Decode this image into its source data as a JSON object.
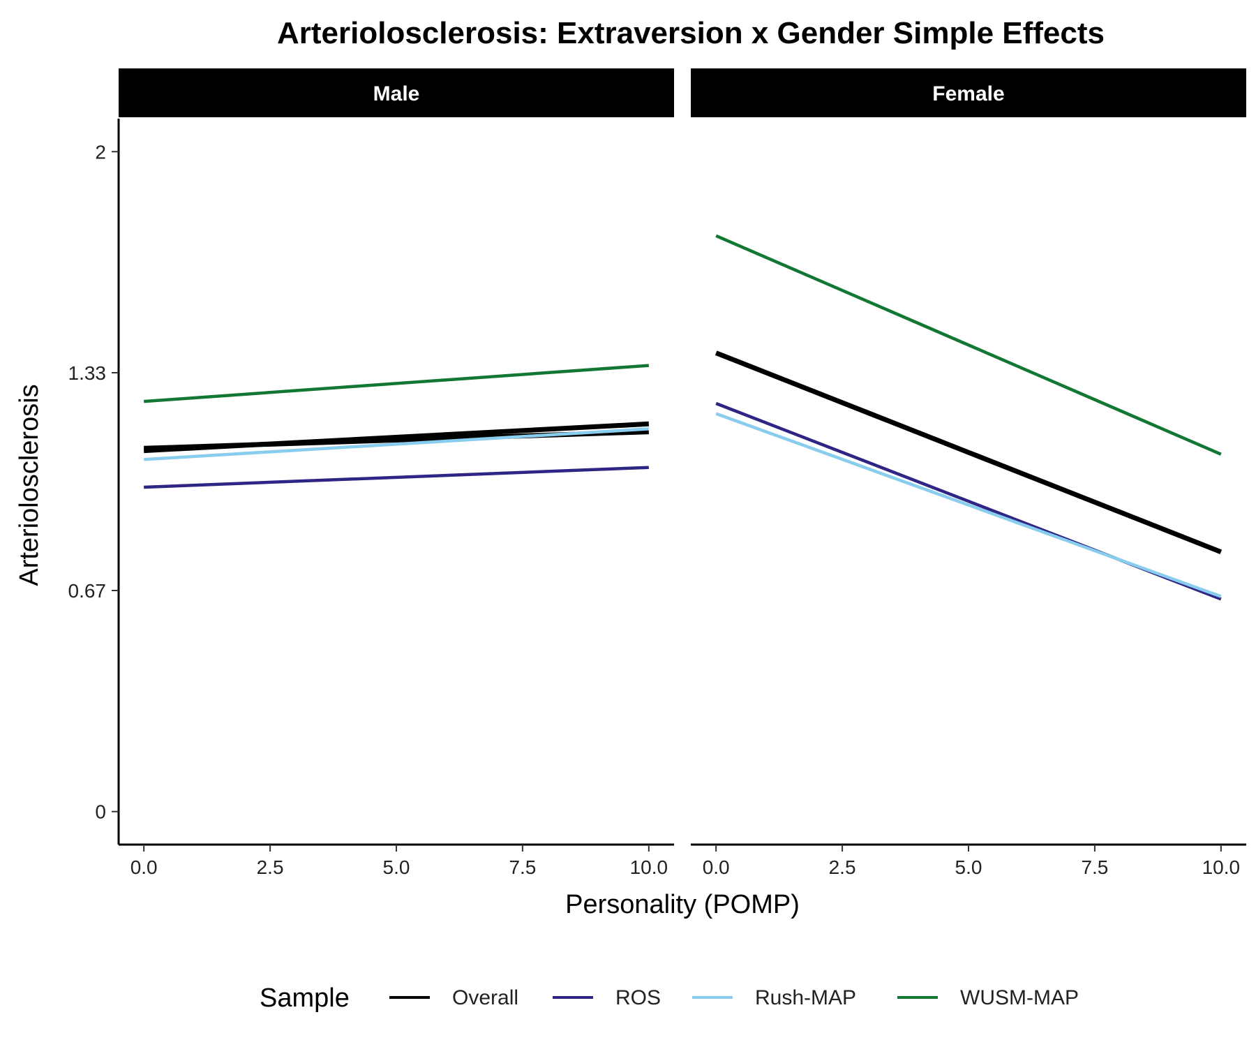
{
  "chart_data": {
    "type": "line",
    "title": "Arteriolosclerosis: Extraversion x Gender Simple Effects",
    "xlabel": "Personality (POMP)",
    "ylabel": "Arteriolosclerosis",
    "xlim": [
      -0.5,
      10.5
    ],
    "ylim": [
      -0.1,
      2.1
    ],
    "x_ticks": [
      0.0,
      2.5,
      5.0,
      7.5,
      10.0
    ],
    "x_tick_labels": [
      "0.0",
      "2.5",
      "5.0",
      "7.5",
      "10.0"
    ],
    "y_ticks": [
      0,
      0.67,
      1.33,
      2
    ],
    "y_tick_labels": [
      "0",
      "0.67",
      "1.33",
      "2"
    ],
    "grid": false,
    "legend": {
      "title": "Sample",
      "placement": "bottom",
      "entries": [
        "Overall",
        "ROS",
        "Rush-MAP",
        "WUSM-MAP"
      ]
    },
    "series_colors": {
      "Overall": "#000000",
      "ROS": "#2e2585",
      "Rush-MAP": "#88ccee",
      "WUSM-MAP": "#117733"
    },
    "panels": [
      {
        "label": "Male",
        "series": [
          {
            "name": "Overall",
            "x": [
              0,
              10
            ],
            "y": [
              1.094,
              1.175
            ]
          },
          {
            "name": "Overall",
            "x": [
              0,
              10
            ],
            "y": [
              1.101,
              1.151
            ]
          },
          {
            "name": "ROS",
            "x": [
              0,
              10
            ],
            "y": [
              0.983,
              1.043
            ]
          },
          {
            "name": "Rush-MAP",
            "x": [
              0,
              10
            ],
            "y": [
              1.067,
              1.16
            ]
          },
          {
            "name": "WUSM-MAP",
            "x": [
              0,
              10
            ],
            "y": [
              1.243,
              1.352
            ]
          }
        ]
      },
      {
        "label": "Female",
        "series": [
          {
            "name": "Overall",
            "x": [
              0,
              10
            ],
            "y": [
              1.39,
              0.787
            ]
          },
          {
            "name": "ROS",
            "x": [
              0,
              10
            ],
            "y": [
              1.237,
              0.644
            ]
          },
          {
            "name": "Rush-MAP",
            "x": [
              0,
              10
            ],
            "y": [
              1.206,
              0.652
            ]
          },
          {
            "name": "WUSM-MAP",
            "x": [
              0,
              10
            ],
            "y": [
              1.745,
              1.083
            ]
          }
        ]
      }
    ]
  }
}
